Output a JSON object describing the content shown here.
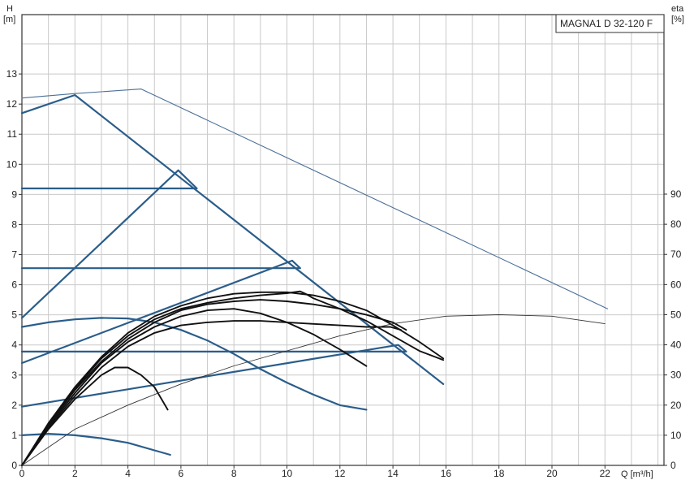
{
  "chart_data": {
    "type": "line",
    "title": "MAGNA1 D 32-120 F",
    "xlabel": "Q [m³/h]",
    "ylabel_left_name": "H",
    "ylabel_left_unit": "[m]",
    "ylabel_right_name": "eta",
    "ylabel_right_unit": "[%]",
    "xlim": [
      0,
      24
    ],
    "ylim_left": [
      0,
      14.5
    ],
    "ylim_right": [
      0,
      145
    ],
    "xticks": [
      0,
      2,
      4,
      6,
      8,
      10,
      12,
      14,
      16,
      18,
      20,
      22
    ],
    "yticks_left": [
      0,
      1,
      2,
      3,
      4,
      5,
      6,
      7,
      8,
      9,
      10,
      11,
      12,
      13
    ],
    "yticks_right": [
      0,
      10,
      20,
      30,
      40,
      50,
      60,
      70,
      80,
      90
    ],
    "grid": true,
    "colors": {
      "blue": "#2a5d8a",
      "black": "#111111",
      "thin_blue": "#4a6f98",
      "thin_black": "#333333"
    },
    "series": [
      {
        "style": "max_outline",
        "points": [
          [
            0,
            11.7
          ],
          [
            2,
            12.3
          ],
          [
            15.9,
            2.7
          ]
        ]
      },
      {
        "style": "dual_max_outline",
        "points": [
          [
            0,
            12.2
          ],
          [
            2,
            12.35
          ],
          [
            4.5,
            12.5
          ],
          [
            22.1,
            5.2
          ]
        ]
      },
      {
        "style": "const_pressure_high",
        "points": [
          [
            0,
            4.9
          ],
          [
            5.9,
            9.8
          ],
          [
            6.6,
            9.2
          ],
          [
            0,
            9.2
          ]
        ]
      },
      {
        "style": "const_pressure_mid",
        "points": [
          [
            0,
            3.4
          ],
          [
            10.2,
            6.8
          ],
          [
            10.5,
            6.55
          ],
          [
            0,
            6.55
          ]
        ]
      },
      {
        "style": "const_pressure_low",
        "points": [
          [
            0,
            1.95
          ],
          [
            14.2,
            4.0
          ],
          [
            14.5,
            3.78
          ],
          [
            0,
            3.78
          ]
        ]
      },
      {
        "style": "proportional_high",
        "points": [
          [
            0,
            4.6
          ],
          [
            1,
            4.75
          ],
          [
            2,
            4.85
          ],
          [
            3,
            4.9
          ],
          [
            4,
            4.88
          ],
          [
            5,
            4.75
          ],
          [
            6,
            4.5
          ],
          [
            7,
            4.15
          ],
          [
            8,
            3.7
          ],
          [
            9,
            3.2
          ],
          [
            10,
            2.75
          ],
          [
            11,
            2.35
          ],
          [
            12,
            2.0
          ],
          [
            13,
            1.85
          ]
        ]
      },
      {
        "style": "proportional_low",
        "points": [
          [
            0,
            1.0
          ],
          [
            1,
            1.05
          ],
          [
            2,
            1.0
          ],
          [
            3,
            0.9
          ],
          [
            4,
            0.75
          ],
          [
            5,
            0.5
          ],
          [
            5.6,
            0.35
          ]
        ]
      },
      {
        "style": "eff_curve_1",
        "points": [
          [
            0,
            0.0
          ],
          [
            1,
            1.2
          ],
          [
            2,
            2.2
          ],
          [
            3,
            3.0
          ],
          [
            3.5,
            3.25
          ],
          [
            4,
            3.25
          ],
          [
            4.5,
            3.0
          ],
          [
            5,
            2.6
          ],
          [
            5.5,
            1.85
          ]
        ]
      },
      {
        "style": "eff_curve_2",
        "points": [
          [
            0,
            0.0
          ],
          [
            1,
            1.25
          ],
          [
            2,
            2.3
          ],
          [
            3,
            3.25
          ],
          [
            4,
            3.95
          ],
          [
            5,
            4.4
          ],
          [
            6,
            4.65
          ],
          [
            7,
            4.75
          ],
          [
            8,
            4.8
          ],
          [
            9,
            4.8
          ],
          [
            10,
            4.75
          ],
          [
            11,
            4.7
          ],
          [
            12,
            4.65
          ],
          [
            13,
            4.6
          ],
          [
            13.9,
            4.6
          ],
          [
            14.3,
            4.5
          ]
        ]
      },
      {
        "style": "eff_curve_3",
        "points": [
          [
            0,
            0.0
          ],
          [
            1,
            1.3
          ],
          [
            2,
            2.4
          ],
          [
            3,
            3.4
          ],
          [
            4,
            4.1
          ],
          [
            5,
            4.6
          ],
          [
            6,
            4.95
          ],
          [
            7,
            5.15
          ],
          [
            8,
            5.2
          ],
          [
            9,
            5.05
          ],
          [
            10,
            4.75
          ],
          [
            11,
            4.35
          ],
          [
            12,
            3.85
          ],
          [
            13,
            3.3
          ]
        ]
      },
      {
        "style": "eff_curve_4",
        "points": [
          [
            0,
            0.0
          ],
          [
            1,
            1.35
          ],
          [
            2,
            2.5
          ],
          [
            3,
            3.45
          ],
          [
            4,
            4.2
          ],
          [
            5,
            4.75
          ],
          [
            6,
            5.15
          ],
          [
            7,
            5.35
          ],
          [
            8,
            5.45
          ],
          [
            9,
            5.5
          ],
          [
            10,
            5.45
          ],
          [
            11,
            5.35
          ],
          [
            12,
            5.2
          ],
          [
            13,
            5.0
          ],
          [
            14,
            4.75
          ],
          [
            14.5,
            4.5
          ]
        ]
      },
      {
        "style": "eff_curve_5",
        "points": [
          [
            0,
            0.0
          ],
          [
            1,
            1.35
          ],
          [
            2,
            2.55
          ],
          [
            3,
            3.55
          ],
          [
            4,
            4.3
          ],
          [
            5,
            4.85
          ],
          [
            6,
            5.2
          ],
          [
            7,
            5.4
          ],
          [
            8,
            5.55
          ],
          [
            9,
            5.65
          ],
          [
            10,
            5.72
          ],
          [
            10.5,
            5.78
          ],
          [
            10.7,
            5.7
          ],
          [
            11,
            5.55
          ],
          [
            12,
            5.2
          ],
          [
            13,
            4.8
          ],
          [
            14,
            4.3
          ],
          [
            15,
            3.8
          ],
          [
            15.9,
            3.5
          ]
        ]
      },
      {
        "style": "eff_curve_6",
        "points": [
          [
            0,
            0.0
          ],
          [
            1,
            1.4
          ],
          [
            2,
            2.6
          ],
          [
            3,
            3.6
          ],
          [
            4,
            4.4
          ],
          [
            5,
            4.95
          ],
          [
            6,
            5.3
          ],
          [
            7,
            5.55
          ],
          [
            8,
            5.7
          ],
          [
            9,
            5.75
          ],
          [
            10,
            5.75
          ],
          [
            11,
            5.65
          ],
          [
            12,
            5.45
          ],
          [
            13,
            5.15
          ],
          [
            14,
            4.65
          ],
          [
            15,
            4.1
          ],
          [
            15.9,
            3.55
          ]
        ]
      },
      {
        "style": "efficiency_eta",
        "eta_points": [
          [
            0,
            0
          ],
          [
            2,
            12
          ],
          [
            4,
            20
          ],
          [
            6,
            27
          ],
          [
            8,
            33
          ],
          [
            10,
            38
          ],
          [
            12,
            43
          ],
          [
            14,
            47
          ],
          [
            16,
            49.5
          ],
          [
            18,
            50
          ],
          [
            20,
            49.5
          ],
          [
            22,
            47
          ]
        ]
      }
    ]
  }
}
